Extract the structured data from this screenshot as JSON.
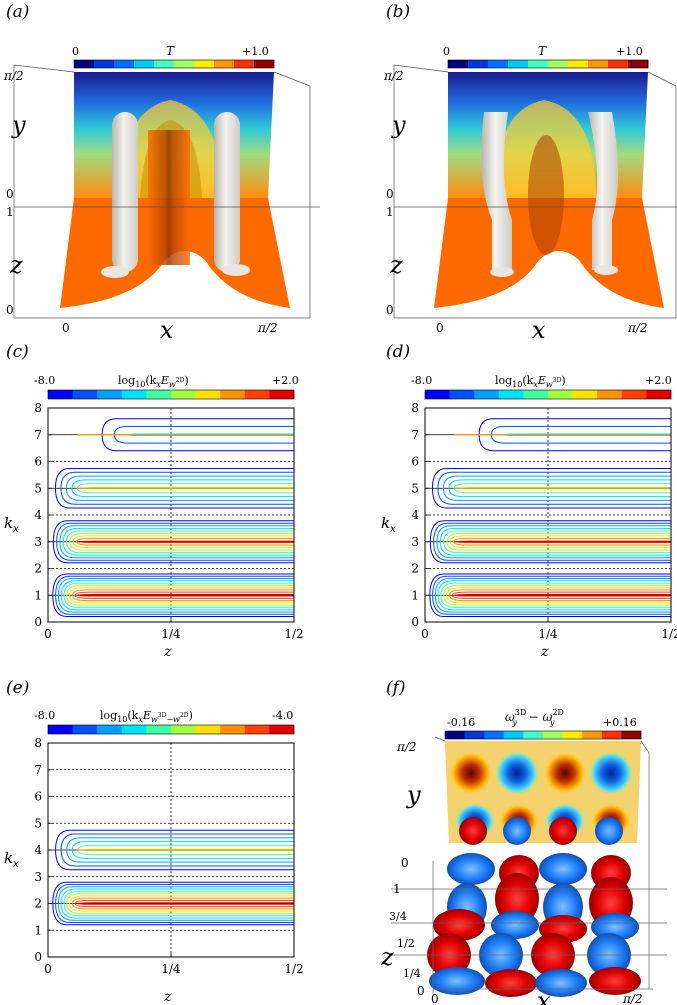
{
  "panels": {
    "a": {
      "label": "(a)",
      "colorbar": {
        "min": "0",
        "max": "+1.0",
        "var": "T"
      },
      "y_axis": {
        "top": "π/2",
        "name": "y",
        "bottom": "0"
      },
      "z_axis": {
        "top": "1",
        "name": "z",
        "bottom": "0"
      },
      "x_axis": {
        "left": "0",
        "name": "x",
        "right": "π/2"
      }
    },
    "b": {
      "label": "(b)",
      "colorbar": {
        "min": "0",
        "max": "+1.0",
        "var": "T"
      },
      "y_axis": {
        "top": "π/2",
        "name": "y",
        "bottom": "0"
      },
      "z_axis": {
        "top": "1",
        "name": "z",
        "bottom": "0"
      },
      "x_axis": {
        "left": "0",
        "name": "x",
        "right": "π/2"
      }
    },
    "c": {
      "label": "(c)",
      "colorbar": {
        "min": "-8.0",
        "max": "+2.0",
        "title_main": "log",
        "title_sub": "10",
        "title_args": "(k",
        "title_x": "x",
        "title_E": "E",
        "title_w": "w",
        "title_sup": "2D",
        "title_close": ")"
      }
    },
    "d": {
      "label": "(d)",
      "colorbar": {
        "min": "-8.0",
        "max": "+2.0",
        "title_main": "log",
        "title_sub": "10",
        "title_args": "(k",
        "title_x": "x",
        "title_E": "E",
        "title_w": "w",
        "title_sup": "3D",
        "title_close": ")"
      }
    },
    "e": {
      "label": "(e)",
      "colorbar": {
        "min": "-8.0",
        "max": "-4.0",
        "title_main": "log",
        "title_sub": "10",
        "title_args": "(k",
        "title_x": "x",
        "title_E": "E",
        "title_w": "w",
        "title_sup": "3D",
        "title_minus": "−w",
        "title_sup2": "2D",
        "title_close": ")"
      }
    },
    "f": {
      "label": "(f)",
      "colorbar": {
        "min": "-0.16",
        "max": "+0.16",
        "w1": "ω",
        "w1_sup": "3D",
        "w1_sub": "y",
        "minus": " − ω",
        "w2_sup": "2D",
        "w2_sub": "y"
      },
      "y_axis": {
        "top": "π/2",
        "name": "y",
        "bottom": "0"
      },
      "z_axis": {
        "t1": "1",
        "t34": "3/4",
        "t12": "1/2",
        "t14": "1/4",
        "t0": "0",
        "name": "z"
      },
      "x_axis": {
        "left": "0",
        "name": "x",
        "right": "π/2"
      }
    }
  },
  "contour_axes": {
    "y_label_k": "k",
    "y_label_sub": "x",
    "y_ticks": [
      "0",
      "1",
      "2",
      "3",
      "4",
      "5",
      "6",
      "7",
      "8"
    ],
    "x_ticks": [
      "0",
      "1/4",
      "1/2"
    ],
    "x_label": "z"
  },
  "colors": {
    "orange": "#ff6a00",
    "jet": [
      "#00007f",
      "#0038d8",
      "#0070ff",
      "#00c8ff",
      "#40ffbf",
      "#9fff60",
      "#ffea00",
      "#ff9800",
      "#ff3000",
      "#8f0000"
    ],
    "spectrum": [
      "#0000ff",
      "#0050ff",
      "#00a0ff",
      "#00e0ff",
      "#40ffa0",
      "#a0ff40",
      "#ffe000",
      "#ff9000",
      "#ff4000",
      "#e00000"
    ]
  },
  "chart_data": [
    {
      "type": "heatmap",
      "title": "log10(kx E w2D)",
      "xlabel": "z",
      "ylabel": "kx",
      "xlim": [
        0,
        0.5
      ],
      "ylim": [
        0,
        8
      ],
      "value_range": [
        -8.0,
        2.0
      ],
      "peak_bands": [
        1,
        3,
        5,
        7
      ],
      "contour_levels_visible": 10
    },
    {
      "type": "heatmap",
      "title": "log10(kx E w3D)",
      "xlabel": "z",
      "ylabel": "kx",
      "xlim": [
        0,
        0.5
      ],
      "ylim": [
        0,
        8
      ],
      "value_range": [
        -8.0,
        2.0
      ],
      "peak_bands": [
        1,
        3,
        5,
        7
      ],
      "contour_levels_visible": 10
    },
    {
      "type": "heatmap",
      "title": "log10(kx E w3D−w2D)",
      "xlabel": "z",
      "ylabel": "kx",
      "xlim": [
        0,
        0.5
      ],
      "ylim": [
        0,
        8
      ],
      "value_range": [
        -8.0,
        -4.0
      ],
      "peak_bands": [
        2,
        4
      ],
      "contour_levels_visible": 10
    }
  ]
}
